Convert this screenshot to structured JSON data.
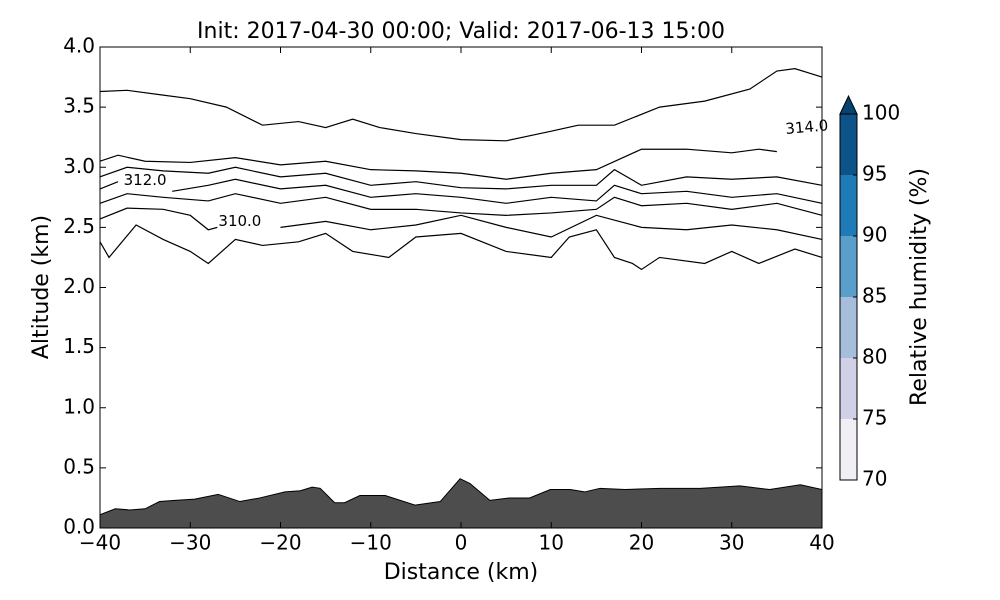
{
  "chart_data": {
    "type": "cross-section",
    "title": "Init: 2017-04-30 00:00; Valid: 2017-06-13 15:00",
    "xlabel": "Distance (km)",
    "ylabel": "Altitude (km)",
    "xlim": [
      -40,
      40
    ],
    "ylim": [
      0,
      4
    ],
    "xticks": [
      {
        "value": -40,
        "label": "−40"
      },
      {
        "value": -30,
        "label": "−30"
      },
      {
        "value": -20,
        "label": "−20"
      },
      {
        "value": -10,
        "label": "−10"
      },
      0,
      10,
      20,
      30,
      40
    ],
    "yticks": [
      {
        "value": 0,
        "label": "0.0"
      },
      0.5,
      {
        "value": 1,
        "label": "1.0"
      },
      1.5,
      {
        "value": 2,
        "label": "2.0"
      },
      2.5,
      {
        "value": 3,
        "label": "3.0"
      },
      3.5,
      {
        "value": 4,
        "label": "4.0"
      }
    ],
    "terrain": {
      "color": "#4d4d4d",
      "x": [
        -40,
        -38.3,
        -36.7,
        -35,
        -33.4,
        -31.7,
        -29.5,
        -26.9,
        -24.5,
        -22.3,
        -19.5,
        -17.8,
        -16.5,
        -15.6,
        -14,
        -12.9,
        -11.2,
        -8.4,
        -5.1,
        -2.3,
        -0.1,
        1,
        3.2,
        5.4,
        7.6,
        9.9,
        12.1,
        13.7,
        15.4,
        18.2,
        22.1,
        26.5,
        30.9,
        34.2,
        37.6,
        40
      ],
      "values": [
        0.11,
        0.16,
        0.15,
        0.16,
        0.22,
        0.23,
        0.24,
        0.28,
        0.22,
        0.25,
        0.3,
        0.31,
        0.34,
        0.33,
        0.21,
        0.21,
        0.27,
        0.27,
        0.19,
        0.22,
        0.41,
        0.37,
        0.23,
        0.25,
        0.25,
        0.32,
        0.32,
        0.3,
        0.33,
        0.32,
        0.33,
        0.33,
        0.35,
        0.32,
        0.36,
        0.32
      ]
    },
    "contour_color": "#000000",
    "contours": [
      {
        "x": [
          -40,
          -37,
          -33,
          -30,
          -26,
          -22,
          -18,
          -15,
          -12,
          -9,
          -5,
          0,
          5,
          10,
          13,
          17,
          22,
          27,
          32,
          35,
          37,
          40
        ],
        "values": [
          3.63,
          3.64,
          3.6,
          3.57,
          3.5,
          3.35,
          3.38,
          3.33,
          3.4,
          3.33,
          3.28,
          3.23,
          3.22,
          3.3,
          3.35,
          3.35,
          3.5,
          3.55,
          3.65,
          3.8,
          3.82,
          3.75
        ]
      },
      {
        "label": "314.0",
        "x": [
          -40,
          -38,
          -35,
          -30,
          -25,
          -20,
          -15,
          -10,
          -5,
          0,
          5,
          10,
          15,
          20,
          25,
          30,
          33,
          35
        ],
        "values": [
          3.05,
          3.1,
          3.05,
          3.04,
          3.08,
          3.02,
          3.05,
          2.98,
          2.97,
          2.95,
          2.9,
          2.95,
          2.98,
          3.15,
          3.15,
          3.12,
          3.15,
          3.13
        ]
      },
      {
        "x": [
          -40,
          -37,
          -33,
          -28,
          -25,
          -20,
          -15,
          -10,
          -5,
          0,
          5,
          10,
          15,
          17,
          20,
          25,
          30,
          35,
          40
        ],
        "values": [
          2.92,
          3.0,
          2.97,
          2.95,
          3.0,
          2.92,
          2.95,
          2.85,
          2.88,
          2.83,
          2.82,
          2.85,
          2.85,
          2.98,
          2.85,
          2.92,
          2.9,
          2.92,
          2.85
        ]
      },
      {
        "label": "312.0",
        "x": [
          -40,
          -38,
          -35,
          -32,
          -28,
          -25,
          -20,
          -15,
          -10,
          -5,
          0,
          5,
          10,
          15,
          17,
          20,
          25,
          30,
          35,
          40
        ],
        "values": [
          2.82,
          2.88,
          null,
          2.8,
          2.85,
          2.9,
          2.82,
          2.85,
          2.75,
          2.78,
          2.75,
          2.7,
          2.75,
          2.72,
          2.85,
          2.78,
          2.8,
          2.75,
          2.78,
          2.7
        ]
      },
      {
        "x": [
          -40,
          -37,
          -33,
          -28,
          -25,
          -20,
          -15,
          -10,
          -5,
          0,
          5,
          10,
          15,
          17,
          20,
          25,
          30,
          35,
          40
        ],
        "values": [
          2.7,
          2.78,
          2.75,
          2.72,
          2.78,
          2.7,
          2.75,
          2.65,
          2.65,
          2.62,
          2.6,
          2.62,
          2.65,
          2.75,
          2.68,
          2.7,
          2.65,
          2.7,
          2.6
        ]
      },
      {
        "label": "310.0",
        "x": [
          -40,
          -37,
          -33,
          -30,
          -28,
          -27,
          -24.5,
          -20,
          -15,
          -10,
          -5,
          0,
          5,
          10,
          15,
          20,
          25,
          30,
          35,
          40
        ],
        "values": [
          2.57,
          2.66,
          2.65,
          2.6,
          2.48,
          2.5,
          null,
          2.5,
          2.55,
          2.48,
          2.52,
          2.6,
          2.5,
          2.42,
          2.6,
          2.5,
          2.48,
          2.52,
          2.48,
          2.4
        ]
      },
      {
        "x": [
          -40,
          -39,
          -36,
          -33,
          -30,
          -28,
          -25,
          -22,
          -18,
          -15,
          -12,
          -8,
          -5,
          0,
          5,
          10,
          12,
          15,
          17,
          19,
          20,
          22,
          27,
          30,
          33,
          37,
          40
        ],
        "values": [
          2.38,
          2.25,
          2.52,
          2.4,
          2.3,
          2.2,
          2.4,
          2.35,
          2.38,
          2.45,
          2.3,
          2.25,
          2.42,
          2.45,
          2.3,
          2.25,
          2.42,
          2.48,
          2.25,
          2.2,
          2.15,
          2.25,
          2.2,
          2.3,
          2.2,
          2.32,
          2.25
        ]
      }
    ],
    "colorbar": {
      "label": "Relative humidity (%)",
      "ticks": [
        70,
        75,
        80,
        85,
        90,
        95,
        100
      ],
      "colors": [
        "#f1eef6",
        "#d0d1e6",
        "#a6bddb",
        "#5a9fcc",
        "#1f7bb8",
        "#0b5389"
      ],
      "extend": "max",
      "extend_color": "#08426e"
    }
  }
}
